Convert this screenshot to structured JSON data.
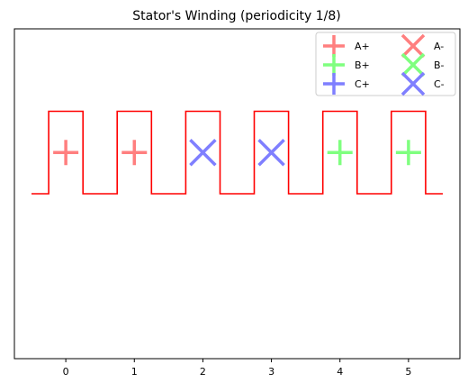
{
  "chart_data": {
    "type": "line",
    "title": "Stator's Winding (periodicity 1/8)",
    "xlabel": "",
    "ylabel": "",
    "xlim": [
      -0.75,
      5.75
    ],
    "ylim": [
      -2,
      2
    ],
    "xticks": [
      0,
      1,
      2,
      3,
      4,
      5
    ],
    "yticks": [],
    "grid": false,
    "legend": {
      "placement": "top-right",
      "columns": 2
    },
    "outline": {
      "color": "#ff0000",
      "points": [
        [
          -0.5,
          0
        ],
        [
          -0.25,
          0
        ],
        [
          -0.25,
          1
        ],
        [
          0.25,
          1
        ],
        [
          0.25,
          0
        ],
        [
          0.75,
          0
        ],
        [
          0.75,
          1
        ],
        [
          1.25,
          1
        ],
        [
          1.25,
          0
        ],
        [
          1.75,
          0
        ],
        [
          1.75,
          1
        ],
        [
          2.25,
          1
        ],
        [
          2.25,
          0
        ],
        [
          2.75,
          0
        ],
        [
          2.75,
          1
        ],
        [
          3.25,
          1
        ],
        [
          3.25,
          0
        ],
        [
          3.75,
          0
        ],
        [
          3.75,
          1
        ],
        [
          4.25,
          1
        ],
        [
          4.25,
          0
        ],
        [
          4.75,
          0
        ],
        [
          4.75,
          1
        ],
        [
          5.25,
          1
        ],
        [
          5.25,
          0
        ],
        [
          5.5,
          0
        ]
      ]
    },
    "series": [
      {
        "name": "A+",
        "marker": "plus",
        "color": "#ff7f7f",
        "points": [
          [
            0,
            0.5
          ],
          [
            1,
            0.5
          ]
        ]
      },
      {
        "name": "B+",
        "marker": "plus",
        "color": "#7fff7f",
        "points": [
          [
            4,
            0.5
          ],
          [
            5,
            0.5
          ]
        ]
      },
      {
        "name": "C+",
        "marker": "plus",
        "color": "#7f7fff",
        "points": []
      },
      {
        "name": "A-",
        "marker": "x",
        "color": "#ff7f7f",
        "points": []
      },
      {
        "name": "B-",
        "marker": "x",
        "color": "#7fff7f",
        "points": []
      },
      {
        "name": "C-",
        "marker": "x",
        "color": "#7f7fff",
        "points": [
          [
            2,
            0.5
          ],
          [
            3,
            0.5
          ]
        ]
      }
    ]
  }
}
